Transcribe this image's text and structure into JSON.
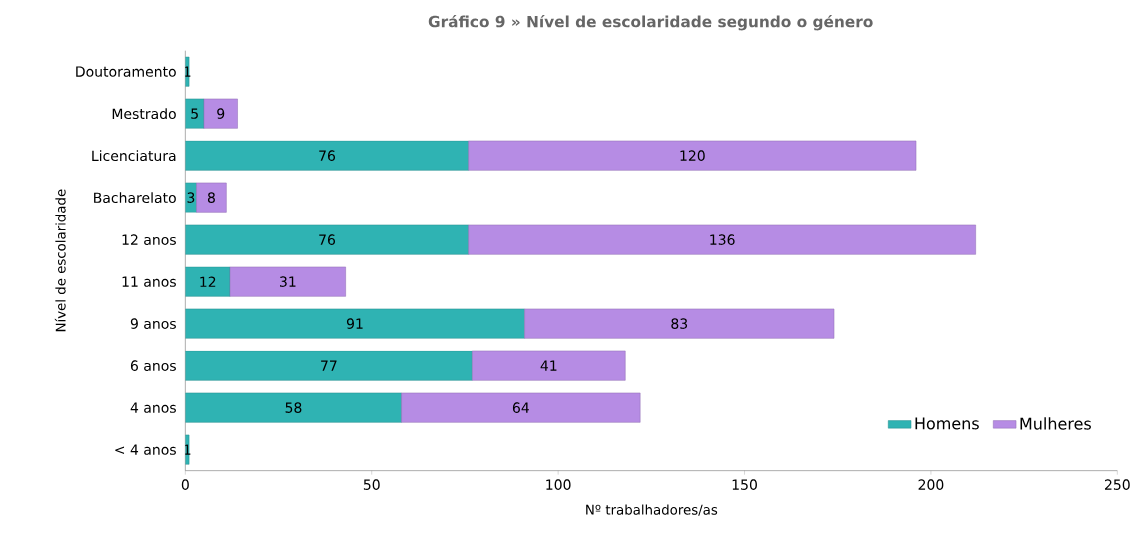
{
  "chart_data": {
    "type": "bar",
    "orientation": "horizontal",
    "stacked": true,
    "title": "Gráfico 9 » Nível de escolaridade segundo o género",
    "xlabel": "Nº trabalhadores/as",
    "ylabel": "Nível de escolaridade",
    "categories": [
      "Doutoramento",
      "Mestrado",
      "Licenciatura",
      "Bacharelato",
      "12 anos",
      "11 anos",
      "9 anos",
      "6 anos",
      "4 anos",
      "< 4 anos"
    ],
    "series": [
      {
        "name": "Homens",
        "color": "#2fb3b3",
        "values": [
          1,
          5,
          76,
          3,
          76,
          12,
          91,
          77,
          58,
          1
        ]
      },
      {
        "name": "Mulheres",
        "color": "#b68ce4",
        "values": [
          null,
          9,
          120,
          8,
          136,
          31,
          83,
          41,
          64,
          null
        ]
      }
    ],
    "xlim": [
      0,
      250
    ],
    "xticks": [
      0,
      50,
      100,
      150,
      200,
      250
    ],
    "data_labels": true,
    "legend": "bottom right"
  }
}
